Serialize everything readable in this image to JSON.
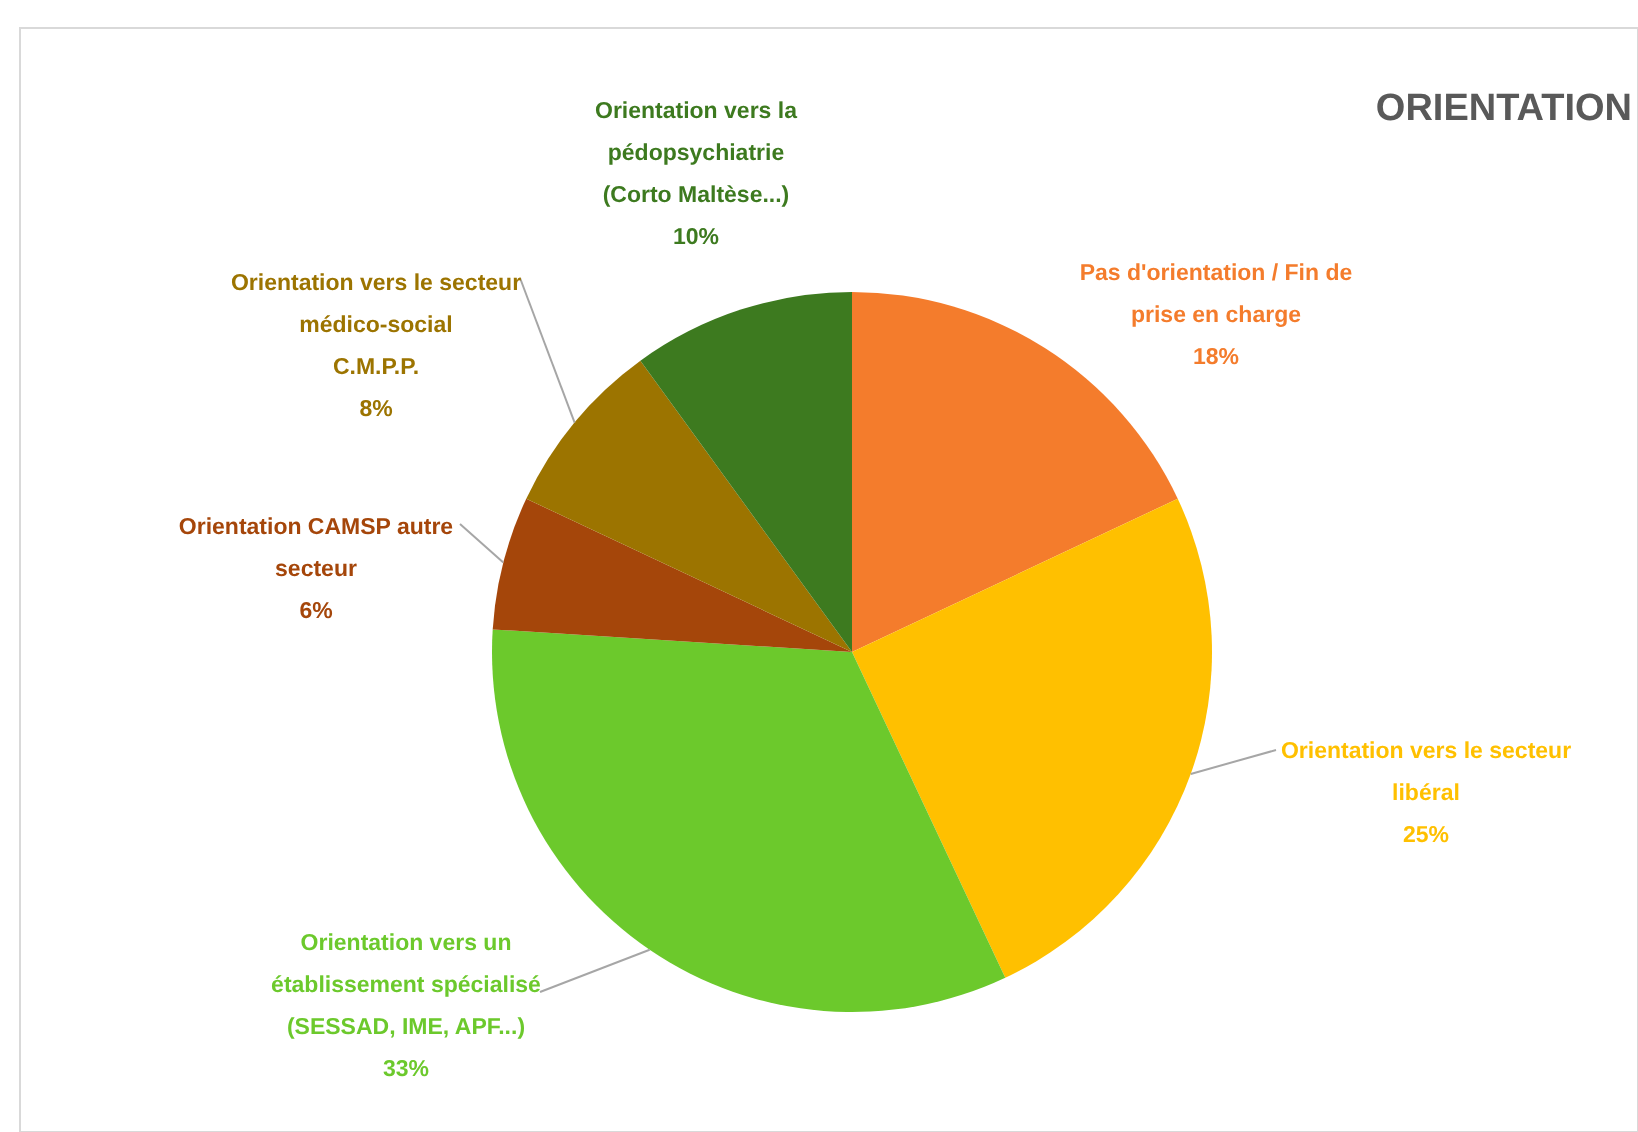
{
  "chart_data": {
    "type": "pie",
    "title": "ORIENTATION",
    "categories": [
      "Pas d'orientation / Fin de\nprise en charge",
      "Orientation vers le secteur\nlibéral",
      "Orientation vers un\nétablissement spécialisé\n(SESSAD, IME, APF...)",
      "Orientation CAMSP autre\nsecteur",
      "Orientation vers le secteur\nmédico-social\nC.M.P.P.",
      "Orientation vers la\npédopsychiatrie\n(Corto Maltèse...)"
    ],
    "values": [
      18,
      25,
      33,
      6,
      8,
      10
    ],
    "colors": [
      "#f47c2c",
      "#ffc000",
      "#6cc92c",
      "#a5460a",
      "#9c7400",
      "#3d7a1f"
    ],
    "value_labels": [
      "18%",
      "25%",
      "33%",
      "6%",
      "8%",
      "10%"
    ]
  }
}
